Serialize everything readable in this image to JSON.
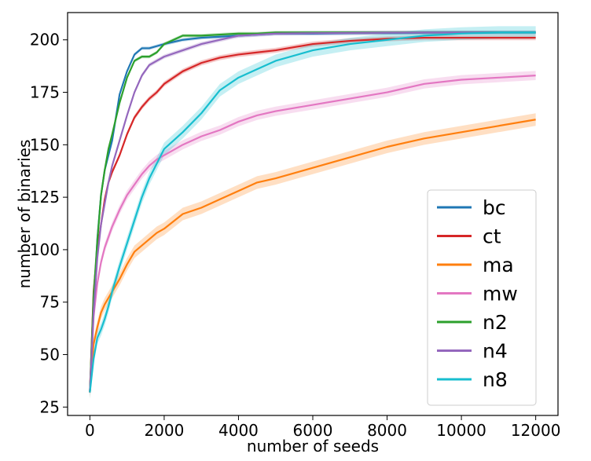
{
  "chart_data": {
    "type": "line",
    "xlabel": "number of seeds",
    "ylabel": "number of binaries",
    "xlim": [
      -600,
      12600
    ],
    "ylim": [
      21,
      213
    ],
    "xticks": [
      0,
      2000,
      4000,
      6000,
      8000,
      10000,
      12000
    ],
    "yticks": [
      25,
      50,
      75,
      100,
      125,
      150,
      175,
      200
    ],
    "legend_position": "lower right",
    "grid": false,
    "x": [
      0,
      100,
      200,
      300,
      400,
      500,
      600,
      800,
      1000,
      1200,
      1400,
      1600,
      1800,
      2000,
      2500,
      3000,
      3500,
      4000,
      4500,
      5000,
      6000,
      7000,
      8000,
      9000,
      10000,
      11000,
      12000
    ],
    "series": [
      {
        "name": "bc",
        "color": "#1f77b4",
        "band": 0.8,
        "values": [
          32,
          72,
          105,
          126,
          138,
          145,
          152,
          174,
          185,
          193,
          196,
          196,
          197,
          198,
          200,
          201,
          201.5,
          202,
          202.5,
          203,
          203,
          203.2,
          203.3,
          203.4,
          203.5,
          203.5,
          203.5
        ]
      },
      {
        "name": "ct",
        "color": "#d62728",
        "band": 1.2,
        "values": [
          32,
          80,
          100,
          112,
          124,
          132,
          137,
          145,
          155,
          163,
          168,
          172,
          175,
          179,
          185,
          189,
          191.5,
          193,
          194,
          195,
          198,
          199.5,
          200.5,
          201,
          201,
          201,
          201
        ]
      },
      {
        "name": "ma",
        "color": "#ff7f0e",
        "band": 3,
        "values": [
          32,
          55,
          63,
          70,
          74,
          77,
          80,
          86,
          93,
          99,
          102,
          105,
          108,
          110,
          117,
          120,
          124,
          128,
          132,
          134,
          139,
          144,
          149,
          153,
          156,
          159,
          162
        ]
      },
      {
        "name": "mw",
        "color": "#e377c2",
        "band": 2.2,
        "values": [
          32,
          68,
          84,
          94,
          101,
          106,
          111,
          119,
          126,
          131,
          136,
          140,
          143,
          145,
          150,
          154,
          157,
          161,
          164,
          166,
          169,
          172,
          175,
          179,
          181,
          182,
          183
        ]
      },
      {
        "name": "n2",
        "color": "#2ca02c",
        "band": 0.8,
        "values": [
          32,
          78,
          104,
          126,
          138,
          148,
          155,
          170,
          182,
          190,
          192,
          192,
          194,
          198,
          202,
          202,
          202.5,
          203,
          203,
          203.5,
          203.5,
          203.5,
          203.5,
          203.5,
          203.5,
          203.5,
          203.5
        ]
      },
      {
        "name": "n4",
        "color": "#9467bd",
        "band": 1,
        "values": [
          32,
          70,
          96,
          112,
          122,
          132,
          140,
          152,
          164,
          175,
          183,
          188,
          190,
          192,
          195,
          198,
          200,
          202,
          202.5,
          203,
          203.2,
          203.3,
          203.4,
          203.5,
          203.5,
          203.5,
          203.5
        ]
      },
      {
        "name": "n8",
        "color": "#17becf",
        "band": 3,
        "values": [
          32,
          48,
          58,
          62,
          67,
          73,
          80,
          92,
          103,
          114,
          125,
          134,
          141,
          148,
          156,
          165,
          176,
          182,
          186,
          190,
          195,
          198,
          200,
          202,
          203,
          203.5,
          203.5
        ]
      }
    ]
  }
}
